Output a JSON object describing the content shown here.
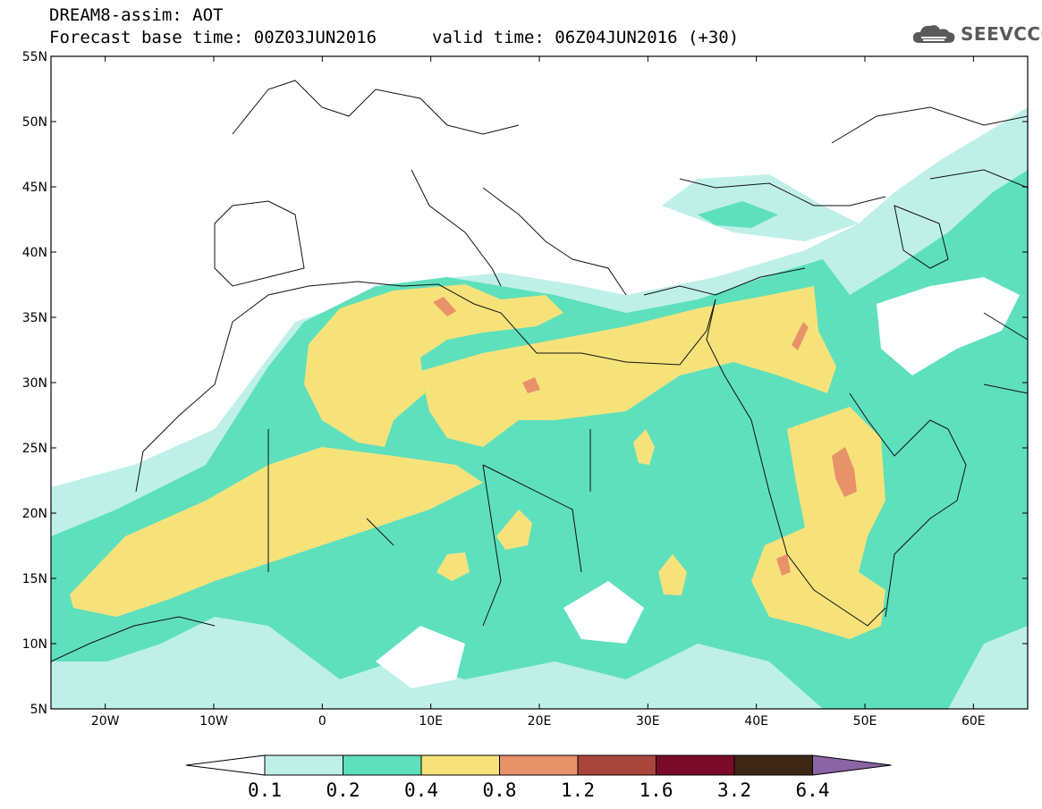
{
  "header": {
    "title": "DREAM8-assim: AOT",
    "base_time": "Forecast base time: 00Z03JUN2016",
    "valid_time": "valid time: 06Z04JUN2016 (+30)"
  },
  "logo": {
    "text": "SEEVCCC",
    "icon": "cloud-icon"
  },
  "map": {
    "extent": {
      "lon": [
        -25,
        65
      ],
      "lat": [
        5,
        55
      ]
    },
    "lat_ticks": [
      {
        "v": 55,
        "label": "55N"
      },
      {
        "v": 50,
        "label": "50N"
      },
      {
        "v": 45,
        "label": "45N"
      },
      {
        "v": 40,
        "label": "40N"
      },
      {
        "v": 35,
        "label": "35N"
      },
      {
        "v": 30,
        "label": "30N"
      },
      {
        "v": 25,
        "label": "25N"
      },
      {
        "v": 20,
        "label": "20N"
      },
      {
        "v": 15,
        "label": "15N"
      },
      {
        "v": 10,
        "label": "10N"
      },
      {
        "v": 5,
        "label": "5N"
      }
    ],
    "lon_ticks": [
      {
        "v": -20,
        "label": "20W"
      },
      {
        "v": -10,
        "label": "10W"
      },
      {
        "v": 0,
        "label": "0"
      },
      {
        "v": 10,
        "label": "10E"
      },
      {
        "v": 20,
        "label": "20E"
      },
      {
        "v": 30,
        "label": "30E"
      },
      {
        "v": 40,
        "label": "40E"
      },
      {
        "v": 50,
        "label": "50E"
      },
      {
        "v": 60,
        "label": "60E"
      }
    ]
  },
  "colorbar": {
    "labels": [
      "0.1",
      "0.2",
      "0.4",
      "0.8",
      "1.2",
      "1.6",
      "3.2",
      "6.4"
    ],
    "colors": [
      "#ffffff",
      "#bff0e8",
      "#5ee0bc",
      "#f7e27a",
      "#e8926a",
      "#a8453c",
      "#7a0b2a",
      "#3d2614",
      "#8a64a4"
    ]
  }
}
